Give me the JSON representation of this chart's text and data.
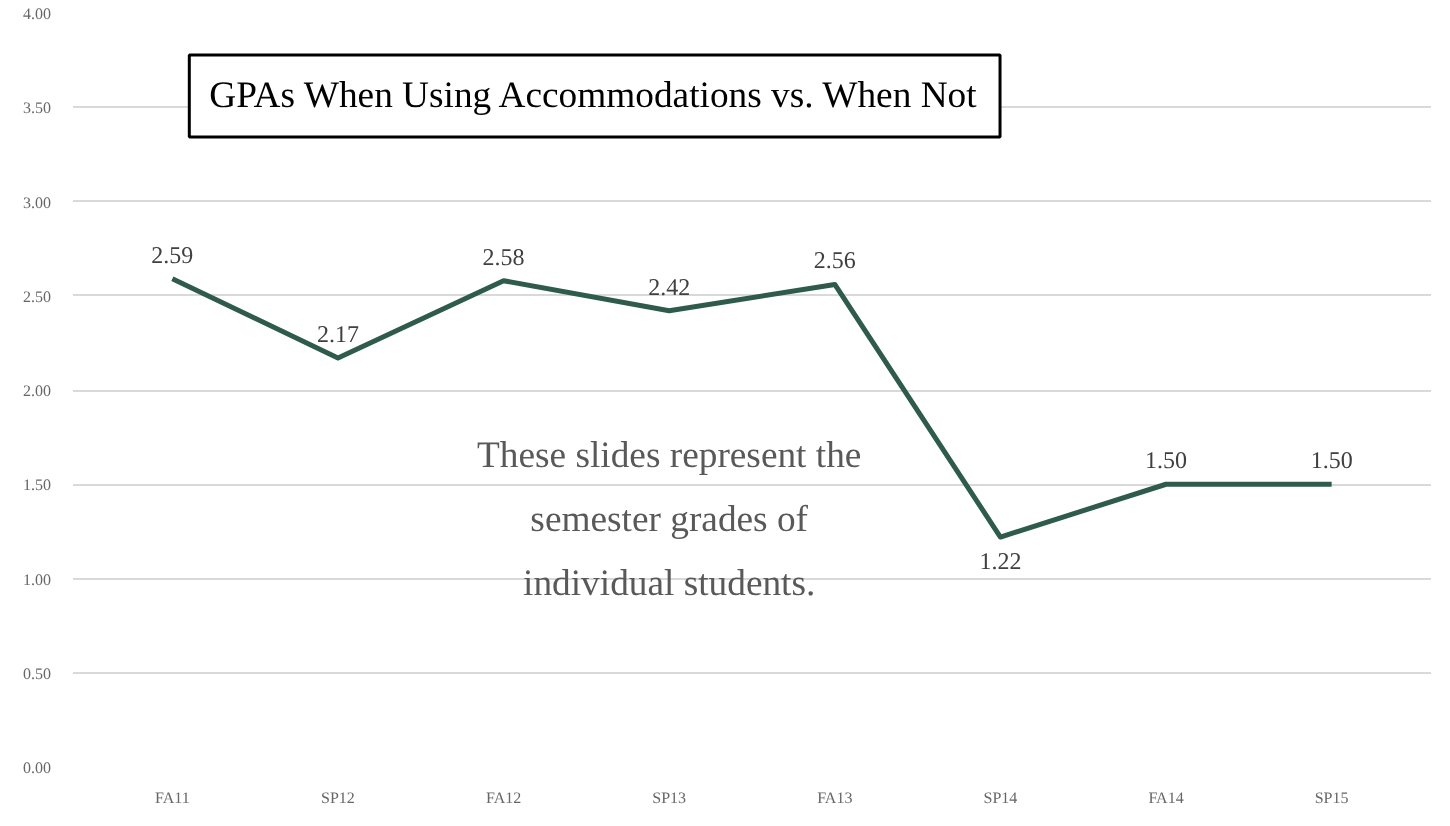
{
  "chart_data": {
    "type": "line",
    "title": "GPAs When Using Accommodations vs. When Not",
    "categories": [
      "FA11",
      "SP12",
      "FA12",
      "SP13",
      "FA13",
      "SP14",
      "FA14",
      "SP15"
    ],
    "series": [
      {
        "color": "#2e5b4b",
        "values": [
          2.59,
          2.17,
          2.58,
          2.42,
          2.56,
          1.22,
          1.5,
          1.5
        ],
        "value_labels": [
          "2.59",
          "2.17",
          "2.58",
          "2.42",
          "2.56",
          "1.22",
          "1.50",
          "1.50"
        ]
      }
    ],
    "ylim": [
      0,
      4
    ],
    "yticks": [
      {
        "value": 0,
        "label": "0.00"
      },
      {
        "value": 0.5,
        "label": "0.50"
      },
      {
        "value": 1,
        "label": "1.00"
      },
      {
        "value": 1.5,
        "label": "1.50"
      },
      {
        "value": 2,
        "label": "2.00"
      },
      {
        "value": 2.5,
        "label": "2.50"
      },
      {
        "value": 3,
        "label": "3.00"
      },
      {
        "value": 3.5,
        "label": "3.50"
      },
      {
        "value": 4,
        "label": "4.00"
      }
    ],
    "grid": "y",
    "marker": "none",
    "line_style": "solid",
    "annotations": [
      "These slides represent the semester grades of individual students."
    ]
  }
}
